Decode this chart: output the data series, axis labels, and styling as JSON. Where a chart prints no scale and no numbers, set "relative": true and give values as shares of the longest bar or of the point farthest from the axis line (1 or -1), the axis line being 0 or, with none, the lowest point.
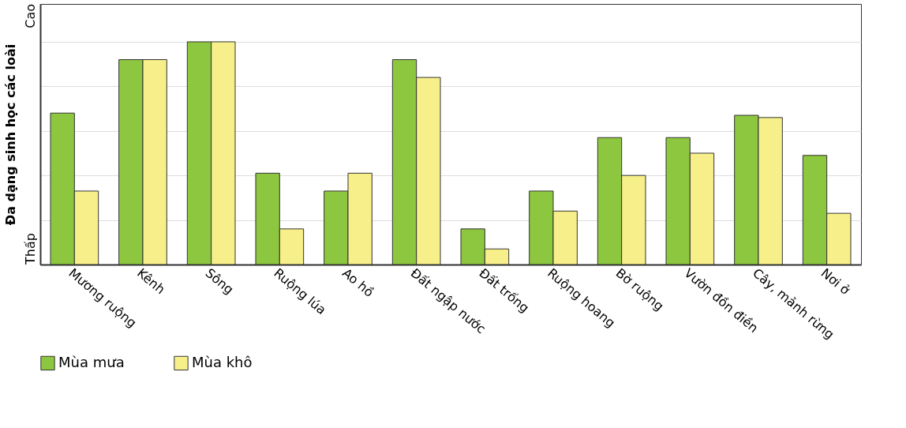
{
  "chart_data": {
    "type": "bar",
    "relative": true,
    "ylabel": "Đa dạng sinh học các loài",
    "annotations": [
      "Thấp",
      "Cao"
    ],
    "grid": "y",
    "legend": "bottom",
    "categories": [
      "Mương ruộng",
      "Kênh",
      "Sông",
      "Ruộng lúa",
      "Ao hồ",
      "Đất ngập nước",
      "Đất trống",
      "Ruộng hoang",
      "Bờ ruộng",
      "Vườn đồn điền",
      "Cây, mảnh rừng",
      "Nơi ở"
    ],
    "series": [
      {
        "name": "Mùa mưa",
        "color": "#8dc63f",
        "values": [
          0.68,
          0.92,
          1.0,
          0.41,
          0.33,
          0.92,
          0.16,
          0.33,
          0.57,
          0.57,
          0.67,
          0.49
        ]
      },
      {
        "name": "Mùa khô",
        "color": "#f7f08a",
        "values": [
          0.33,
          0.92,
          1.0,
          0.16,
          0.41,
          0.84,
          0.07,
          0.24,
          0.4,
          0.5,
          0.66,
          0.23
        ]
      }
    ]
  }
}
